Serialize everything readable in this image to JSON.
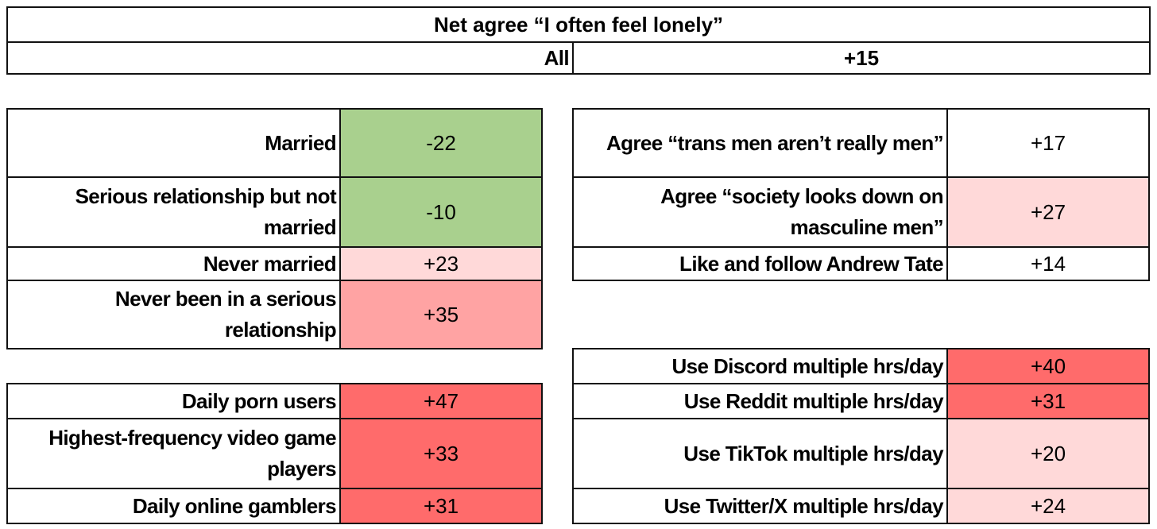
{
  "title": "Net agree “I often feel lonely”",
  "overall": {
    "label": "All",
    "value": "+15"
  },
  "colors": {
    "green": "#a9d08e",
    "light_pink": "#ffd9d9",
    "mid_pink": "#ffa3a3",
    "red": "#ff6b6b",
    "white": "#ffffff"
  },
  "chart_data": {
    "type": "table",
    "title": "Net agree “I often feel lonely”",
    "all": 15,
    "groups": [
      {
        "name": "relationship",
        "rows": [
          {
            "label": "Married",
            "value": "-22",
            "num": -22,
            "color": "#a9d08e"
          },
          {
            "label": "Serious relationship but not married",
            "value": "-10",
            "num": -10,
            "color": "#a9d08e"
          },
          {
            "label": "Never married",
            "value": "+23",
            "num": 23,
            "color": "#ffd9d9"
          },
          {
            "label": "Never been in a serious relationship",
            "value": "+35",
            "num": 35,
            "color": "#ffa3a3"
          }
        ]
      },
      {
        "name": "habits",
        "rows": [
          {
            "label": "Daily porn users",
            "value": "+47",
            "num": 47,
            "color": "#ff6b6b"
          },
          {
            "label": "Highest-frequency video game players",
            "value": "+33",
            "num": 33,
            "color": "#ff6b6b"
          },
          {
            "label": "Daily online gamblers",
            "value": "+31",
            "num": 31,
            "color": "#ff6b6b"
          }
        ]
      },
      {
        "name": "attitudes",
        "rows": [
          {
            "label": "Agree “trans men aren’t really men”",
            "value": "+17",
            "num": 17,
            "color": "#ffffff"
          },
          {
            "label": "Agree “society looks down on masculine men”",
            "value": "+27",
            "num": 27,
            "color": "#ffd9d9"
          },
          {
            "label": "Like and follow Andrew Tate",
            "value": "+14",
            "num": 14,
            "color": "#ffffff"
          }
        ]
      },
      {
        "name": "social-media",
        "rows": [
          {
            "label": "Use Discord multiple hrs/day",
            "value": "+40",
            "num": 40,
            "color": "#ff6b6b"
          },
          {
            "label": "Use Reddit multiple hrs/day",
            "value": "+31",
            "num": 31,
            "color": "#ff6b6b"
          },
          {
            "label": "Use TikTok multiple hrs/day",
            "value": "+20",
            "num": 20,
            "color": "#ffd9d9"
          },
          {
            "label": "Use Twitter/X multiple hrs/day",
            "value": "+24",
            "num": 24,
            "color": "#ffd9d9"
          }
        ]
      }
    ]
  }
}
